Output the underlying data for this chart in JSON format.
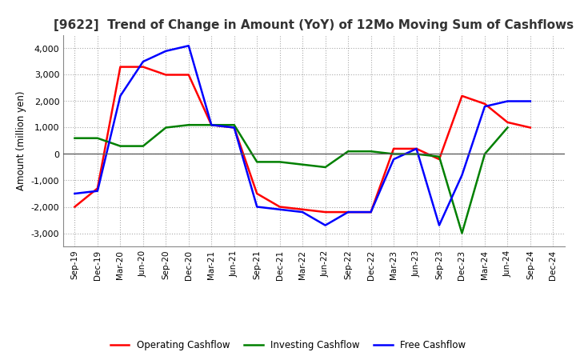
{
  "title": "[9622]  Trend of Change in Amount (YoY) of 12Mo Moving Sum of Cashflows",
  "ylabel": "Amount (million yen)",
  "ylim": [
    -3500,
    4500
  ],
  "yticks": [
    -3000,
    -2000,
    -1000,
    0,
    1000,
    2000,
    3000,
    4000
  ],
  "x_labels": [
    "Sep-19",
    "Dec-19",
    "Mar-20",
    "Jun-20",
    "Sep-20",
    "Dec-20",
    "Mar-21",
    "Jun-21",
    "Sep-21",
    "Dec-21",
    "Mar-22",
    "Jun-22",
    "Sep-22",
    "Dec-22",
    "Mar-23",
    "Jun-23",
    "Sep-23",
    "Dec-23",
    "Mar-24",
    "Jun-24",
    "Sep-24",
    "Dec-24"
  ],
  "operating": [
    -2000,
    -1300,
    3300,
    3300,
    3000,
    3000,
    1100,
    1000,
    -1500,
    -2000,
    -2100,
    -2200,
    -2200,
    -2200,
    200,
    200,
    -200,
    2200,
    1900,
    1200,
    1000,
    null
  ],
  "investing": [
    600,
    600,
    300,
    300,
    1000,
    1100,
    1100,
    1100,
    -300,
    -300,
    -400,
    -500,
    100,
    100,
    0,
    0,
    -100,
    -3000,
    0,
    1000,
    null,
    null
  ],
  "free": [
    -1500,
    -1400,
    2200,
    3500,
    3900,
    4100,
    1100,
    1000,
    -2000,
    -2100,
    -2200,
    -2700,
    -2200,
    -2200,
    -200,
    200,
    -2700,
    -800,
    1800,
    2000,
    2000,
    null
  ],
  "operating_color": "#ff0000",
  "investing_color": "#008000",
  "free_color": "#0000ff",
  "bg_color": "#ffffff",
  "grid_color": "#aaaaaa"
}
